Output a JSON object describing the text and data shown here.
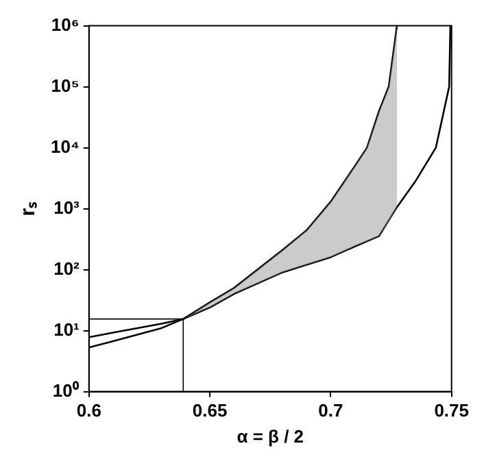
{
  "chart_data": {
    "type": "line",
    "xlabel": "α = β / 2",
    "ylabel": "rₛ",
    "xlim": [
      0.6,
      0.75
    ],
    "xticks": [
      0.6,
      0.65,
      0.7,
      0.75
    ],
    "ylim": [
      1,
      1000000
    ],
    "log": "y",
    "yticks": [
      {
        "value": 1,
        "label": "10⁰"
      },
      {
        "value": 10,
        "label": "10¹"
      },
      {
        "value": 100,
        "label": "10²"
      },
      {
        "value": 1000,
        "label": "10³"
      },
      {
        "value": 10000,
        "label": "10⁴"
      },
      {
        "value": 100000,
        "label": "10⁵"
      },
      {
        "value": 1000000,
        "label": "10⁶"
      }
    ],
    "grid": false,
    "legend": false,
    "marker": "none",
    "line_style": "solid",
    "series": [
      {
        "color": "#000000",
        "x": [
          0.6,
          0.61,
          0.62,
          0.63,
          0.639,
          0.65,
          0.66,
          0.68,
          0.69,
          0.7,
          0.71,
          0.715,
          0.72,
          0.724,
          0.7274
        ],
        "values": [
          5.3,
          6.7,
          8.6,
          11,
          15.5,
          29,
          50,
          209,
          440,
          1300,
          5000,
          10000,
          40000,
          100000,
          1000000
        ],
        "lower": [
          null,
          null,
          null,
          null,
          15.5,
          24,
          40,
          90,
          120,
          160,
          240,
          290,
          355,
          600,
          1050
        ],
        "upper": [
          null,
          null,
          null,
          null,
          15.5,
          29,
          50,
          209,
          440,
          1300,
          5000,
          10000,
          40000,
          100000,
          1000000
        ]
      },
      {
        "color": "#000000",
        "x": [
          0.6,
          0.61,
          0.62,
          0.63,
          0.639,
          0.65,
          0.66,
          0.67,
          0.68,
          0.69,
          0.7,
          0.71,
          0.72,
          0.727,
          0.735,
          0.7435,
          0.749,
          0.7495
        ],
        "values": [
          7.8,
          9.3,
          11,
          13,
          15.5,
          24,
          40,
          60,
          90,
          120,
          160,
          240,
          355,
          1000,
          2800,
          10000,
          100000,
          1000000
        ]
      },
      {
        "color": "#000000",
        "x": [
          0.6,
          0.639,
          0.639
        ],
        "values": [
          15.5,
          15.5,
          1
        ]
      }
    ]
  }
}
